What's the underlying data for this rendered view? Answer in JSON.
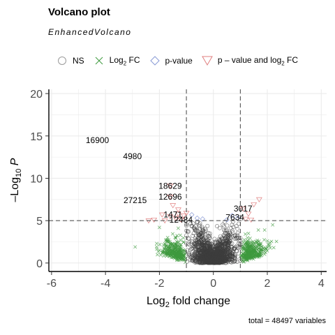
{
  "chart_data": {
    "type": "scatter",
    "title": "Volcano plot",
    "subtitle": "EnhancedVolcano",
    "caption": "total = 48497 variables",
    "xlabel": {
      "base": "Log",
      "sub": "2",
      "rest": " fold change"
    },
    "ylabel": {
      "base": "–Log",
      "sub": "10",
      "rest": " P"
    },
    "xlim": [
      -6.1,
      4.2
    ],
    "ylim": [
      -1,
      20.5
    ],
    "x_ticks": [
      -6,
      -4,
      -2,
      0,
      2,
      4
    ],
    "x_tick_labels": [
      "-6",
      "-4",
      "-2",
      "0",
      "2",
      "4"
    ],
    "y_ticks": [
      0,
      5,
      10,
      15,
      20
    ],
    "y_tick_labels": [
      "0",
      "5",
      "10",
      "15",
      "20"
    ],
    "fc_cutoff": 1,
    "p_cutoff": 5,
    "grid": true,
    "legend_position": "top",
    "legend": [
      {
        "name": "NS",
        "sub": "",
        "rest": "",
        "shape": "circle",
        "color": "#9a9a9a"
      },
      {
        "name": "Log",
        "sub": "2",
        "rest": " FC",
        "shape": "cross",
        "color": "#3f9a3f"
      },
      {
        "name": "p-value",
        "sub": "",
        "rest": "",
        "shape": "diamond",
        "color": "#8a9bd6"
      },
      {
        "name": "p – value and log",
        "sub": "2",
        "rest": " FC",
        "shape": "triangle",
        "color": "#e07f7f"
      }
    ],
    "colors": {
      "ns": "#3d3d3d",
      "fc": "#3f9a3f",
      "p": "#8a9bd6",
      "both": "#e07f7f"
    },
    "highlighted_points": [
      {
        "x": -4.3,
        "y": 14.5,
        "label": "16900"
      },
      {
        "x": -3.0,
        "y": 12.6,
        "label": "4980"
      },
      {
        "x": -1.6,
        "y": 9.1,
        "label": "18629"
      },
      {
        "x": -1.6,
        "y": 7.8,
        "label": "12696"
      },
      {
        "x": -2.9,
        "y": 7.4,
        "label": "27215"
      },
      {
        "x": -1.5,
        "y": 5.7,
        "label": "1471"
      },
      {
        "x": -1.2,
        "y": 5.1,
        "label": "12484"
      },
      {
        "x": 1.1,
        "y": 6.4,
        "label": "3017"
      },
      {
        "x": 0.8,
        "y": 5.4,
        "label": "7634"
      }
    ],
    "sig_both_points": [
      [
        -1.6,
        9.1
      ],
      [
        -1.6,
        7.8
      ],
      [
        -1.5,
        6.8
      ],
      [
        -1.3,
        6.3
      ],
      [
        -1.9,
        5.7
      ],
      [
        -1.6,
        5.5
      ],
      [
        -1.4,
        5.3
      ],
      [
        -1.2,
        5.1
      ],
      [
        -1.1,
        5.6
      ],
      [
        -2.4,
        5.0
      ],
      [
        -2.2,
        5.1
      ],
      [
        -1.8,
        5.0
      ],
      [
        1.1,
        6.4
      ],
      [
        1.3,
        5.8
      ],
      [
        1.7,
        7.5
      ],
      [
        1.5,
        6.9
      ],
      [
        1.2,
        5.2
      ],
      [
        1.4,
        5.1
      ],
      [
        -1.0,
        5.9
      ],
      [
        -1.3,
        5.8
      ]
    ],
    "sig_p_points": [
      [
        -0.8,
        5.7
      ],
      [
        -0.6,
        5.3
      ],
      [
        0.7,
        5.6
      ],
      [
        0.5,
        5.1
      ],
      [
        -0.4,
        5.2
      ],
      [
        0.9,
        5.3
      ]
    ]
  }
}
